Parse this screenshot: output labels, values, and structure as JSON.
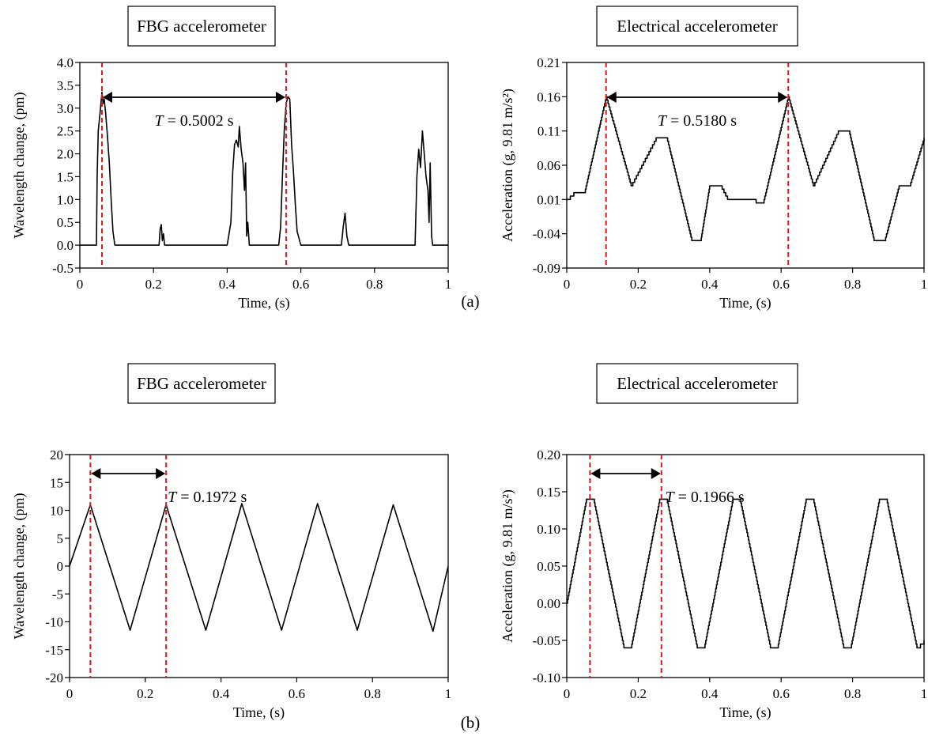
{
  "figure": {
    "part_labels": [
      "(a)",
      "(b)"
    ]
  },
  "chart_data": [
    {
      "type": "line",
      "title": "FBG accelerometer",
      "xlabel": "Time, (s)",
      "ylabel": "Wavelength change, (pm)",
      "xlim": [
        0,
        1
      ],
      "ylim": [
        -0.5,
        4.0
      ],
      "xticks": [
        0,
        0.2,
        0.4,
        0.6,
        0.8,
        1
      ],
      "xtick_labels": [
        "0",
        "0.2",
        "0.4",
        "0.6",
        "0.8",
        "1"
      ],
      "yticks": [
        -0.5,
        0,
        0.5,
        1.0,
        1.5,
        2.0,
        2.5,
        3.0,
        3.5,
        4.0
      ],
      "ytick_labels": [
        "-0.5",
        "0.0",
        "0.5",
        "1.0",
        "1.5",
        "2.0",
        "2.5",
        "3.0",
        "3.5",
        "4.0"
      ],
      "grid": false,
      "series": [
        {
          "x": [
            0,
            0.045,
            0.047,
            0.05,
            0.055,
            0.06,
            0.063,
            0.066,
            0.07,
            0.075,
            0.08,
            0.085,
            0.09,
            0.095,
            0.1,
            0.215,
            0.218,
            0.221,
            0.224,
            0.227,
            0.23,
            0.234,
            0.4,
            0.41,
            0.415,
            0.42,
            0.425,
            0.43,
            0.433,
            0.438,
            0.443,
            0.447,
            0.45,
            0.453,
            0.456,
            0.46,
            0.465,
            0.47,
            0.54,
            0.545,
            0.55,
            0.555,
            0.56,
            0.565,
            0.57,
            0.575,
            0.58,
            0.585,
            0.59,
            0.6,
            0.71,
            0.715,
            0.72,
            0.725,
            0.73,
            0.91,
            0.915,
            0.92,
            0.925,
            0.93,
            0.935,
            0.94,
            0.945,
            0.948,
            0.951,
            0.955,
            0.958,
            1.0
          ],
          "y": [
            0,
            0,
            1.5,
            2.5,
            2.9,
            3.35,
            3.1,
            3.2,
            2.9,
            2.4,
            1.8,
            1.0,
            0.3,
            0,
            0,
            0,
            0.35,
            0.45,
            0.1,
            0.25,
            0,
            0,
            0,
            0.5,
            1.6,
            2.2,
            2.3,
            2.15,
            2.6,
            2.1,
            1.8,
            1.2,
            1.8,
            0.2,
            0.5,
            0,
            0,
            0,
            0,
            0.4,
            1.5,
            2.5,
            3.1,
            3.25,
            3.2,
            2.2,
            1.6,
            0.9,
            0.3,
            0,
            0,
            0.4,
            0.7,
            0.2,
            0,
            0,
            1.5,
            2.1,
            1.7,
            2.5,
            2.0,
            1.5,
            1.2,
            0.5,
            1.8,
            0.2,
            0,
            0
          ]
        }
      ],
      "annotation": {
        "label": "T",
        "text": " = 0.5002 s",
        "x1": 0.06,
        "x2": 0.56
      }
    },
    {
      "type": "line",
      "title": "Electrical accelerometer",
      "xlabel": "Time, (s)",
      "ylabel": "Acceleration (g, 9.81 m/s²)",
      "xlim": [
        0,
        1
      ],
      "ylim": [
        -0.09,
        0.21
      ],
      "xticks": [
        0,
        0.2,
        0.4,
        0.6,
        0.8,
        1
      ],
      "xtick_labels": [
        "0",
        "0.2",
        "0.4",
        "0.6",
        "0.8",
        "1"
      ],
      "yticks": [
        -0.09,
        -0.04,
        0.01,
        0.06,
        0.11,
        0.16,
        0.21
      ],
      "ytick_labels": [
        "-0.09",
        "-0.04",
        "0.01",
        "0.06",
        "0.11",
        "0.16",
        "0.21"
      ],
      "grid": false,
      "series": [
        {
          "x": [
            0,
            0.02,
            0.05,
            0.11,
            0.18,
            0.25,
            0.28,
            0.35,
            0.375,
            0.4,
            0.43,
            0.45,
            0.5,
            0.53,
            0.55,
            0.62,
            0.69,
            0.76,
            0.79,
            0.86,
            0.89,
            0.93,
            0.96,
            1.0
          ],
          "y": [
            0.01,
            0.02,
            0.02,
            0.16,
            0.03,
            0.1,
            0.1,
            -0.05,
            -0.05,
            0.03,
            0.03,
            0.01,
            0.01,
            0.005,
            0.005,
            0.16,
            0.03,
            0.11,
            0.11,
            -0.05,
            -0.05,
            0.03,
            0.03,
            0.1
          ]
        }
      ],
      "annotation": {
        "label": "T",
        "text": " = 0.5180 s",
        "x1": 0.11,
        "x2": 0.62
      }
    },
    {
      "type": "line",
      "title": "FBG accelerometer",
      "xlabel": "Time, (s)",
      "ylabel": "Wavelength change, (pm)",
      "xlim": [
        0,
        1
      ],
      "ylim": [
        -20,
        20
      ],
      "xticks": [
        0,
        0.2,
        0.4,
        0.6,
        0.8,
        1
      ],
      "xtick_labels": [
        "0",
        "0.2",
        "0.4",
        "0.6",
        "0.8",
        "1"
      ],
      "yticks": [
        -20,
        -15,
        -10,
        -5,
        0,
        5,
        10,
        15,
        20
      ],
      "ytick_labels": [
        "-20",
        "-15",
        "-10",
        "-5",
        "0",
        "5",
        "10",
        "15",
        "20"
      ],
      "grid": false,
      "series": [
        {
          "x": [
            0,
            0.055,
            0.16,
            0.255,
            0.36,
            0.455,
            0.56,
            0.655,
            0.76,
            0.855,
            0.96,
            1.0
          ],
          "y": [
            0,
            11,
            -11.5,
            11,
            -11.5,
            11.2,
            -11.5,
            11.2,
            -11.5,
            11,
            -11.7,
            0
          ]
        }
      ],
      "annotation": {
        "label": "T",
        "text": " = 0.1972 s",
        "x1": 0.055,
        "x2": 0.255
      }
    },
    {
      "type": "line",
      "title": "Electrical accelerometer",
      "xlabel": "Time, (s)",
      "ylabel": "Acceleration (g, 9.81 m/s²)",
      "xlim": [
        0,
        1
      ],
      "ylim": [
        -0.1,
        0.2
      ],
      "xticks": [
        0,
        0.2,
        0.4,
        0.6,
        0.8,
        1
      ],
      "xtick_labels": [
        "0",
        "0.2",
        "0.4",
        "0.6",
        "0.8",
        "1"
      ],
      "yticks": [
        -0.1,
        -0.05,
        0.0,
        0.05,
        0.1,
        0.15,
        0.2
      ],
      "ytick_labels": [
        "-0.10",
        "-0.05",
        "0.00",
        "0.05",
        "0.10",
        "0.15",
        "0.20"
      ],
      "grid": false,
      "series": [
        {
          "x": [
            0,
            0.055,
            0.075,
            0.16,
            0.18,
            0.26,
            0.28,
            0.365,
            0.385,
            0.465,
            0.485,
            0.57,
            0.59,
            0.67,
            0.69,
            0.775,
            0.795,
            0.875,
            0.895,
            0.98,
            1.0
          ],
          "y": [
            0,
            0.14,
            0.14,
            -0.06,
            -0.06,
            0.14,
            0.14,
            -0.06,
            -0.06,
            0.14,
            0.14,
            -0.06,
            -0.06,
            0.14,
            0.14,
            -0.06,
            -0.06,
            0.14,
            0.14,
            -0.06,
            -0.05
          ]
        }
      ],
      "annotation": {
        "label": "T",
        "text": " = 0.1966 s",
        "x1": 0.065,
        "x2": 0.265
      }
    }
  ]
}
